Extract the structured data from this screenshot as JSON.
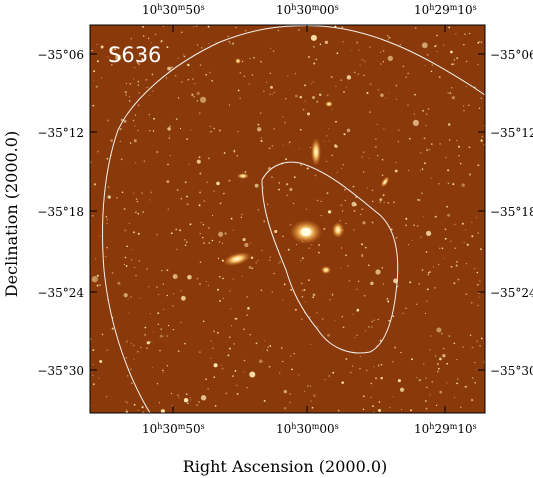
{
  "panel": {
    "label": "S636"
  },
  "axes": {
    "x_title": "Right Ascension (2000.0)",
    "y_title": "Declination (2000.0)",
    "ra_ticks": [
      {
        "h": "10",
        "m": "30",
        "s": "50"
      },
      {
        "h": "10",
        "m": "30",
        "s": "00"
      },
      {
        "h": "10",
        "m": "29",
        "s": "10"
      }
    ],
    "dec_ticks": [
      "−35°06",
      "−35°12",
      "−35°18",
      "−35°24",
      "−35°30"
    ]
  },
  "colors": {
    "sky_background": "#8a3a0a",
    "contour": "#f2f2f2",
    "star": "#ffe7b0",
    "galaxy_core": "#fff6d8",
    "galaxy_halo": "#e88a30"
  }
}
